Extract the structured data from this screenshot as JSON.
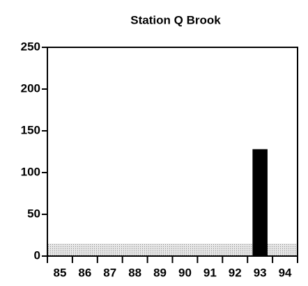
{
  "chart_data": {
    "type": "bar",
    "title": "Station Q Brook",
    "categories": [
      "85",
      "86",
      "87",
      "88",
      "89",
      "90",
      "91",
      "92",
      "93",
      "94"
    ],
    "values": [
      null,
      null,
      null,
      null,
      null,
      null,
      null,
      null,
      128,
      null
    ],
    "color": "#000000",
    "reference_band": [
      0,
      15
    ],
    "band_color": "#cfcfcf",
    "ylim": [
      0,
      250
    ],
    "yticks": [
      0,
      50,
      100,
      150,
      200,
      250
    ],
    "grid": false
  }
}
